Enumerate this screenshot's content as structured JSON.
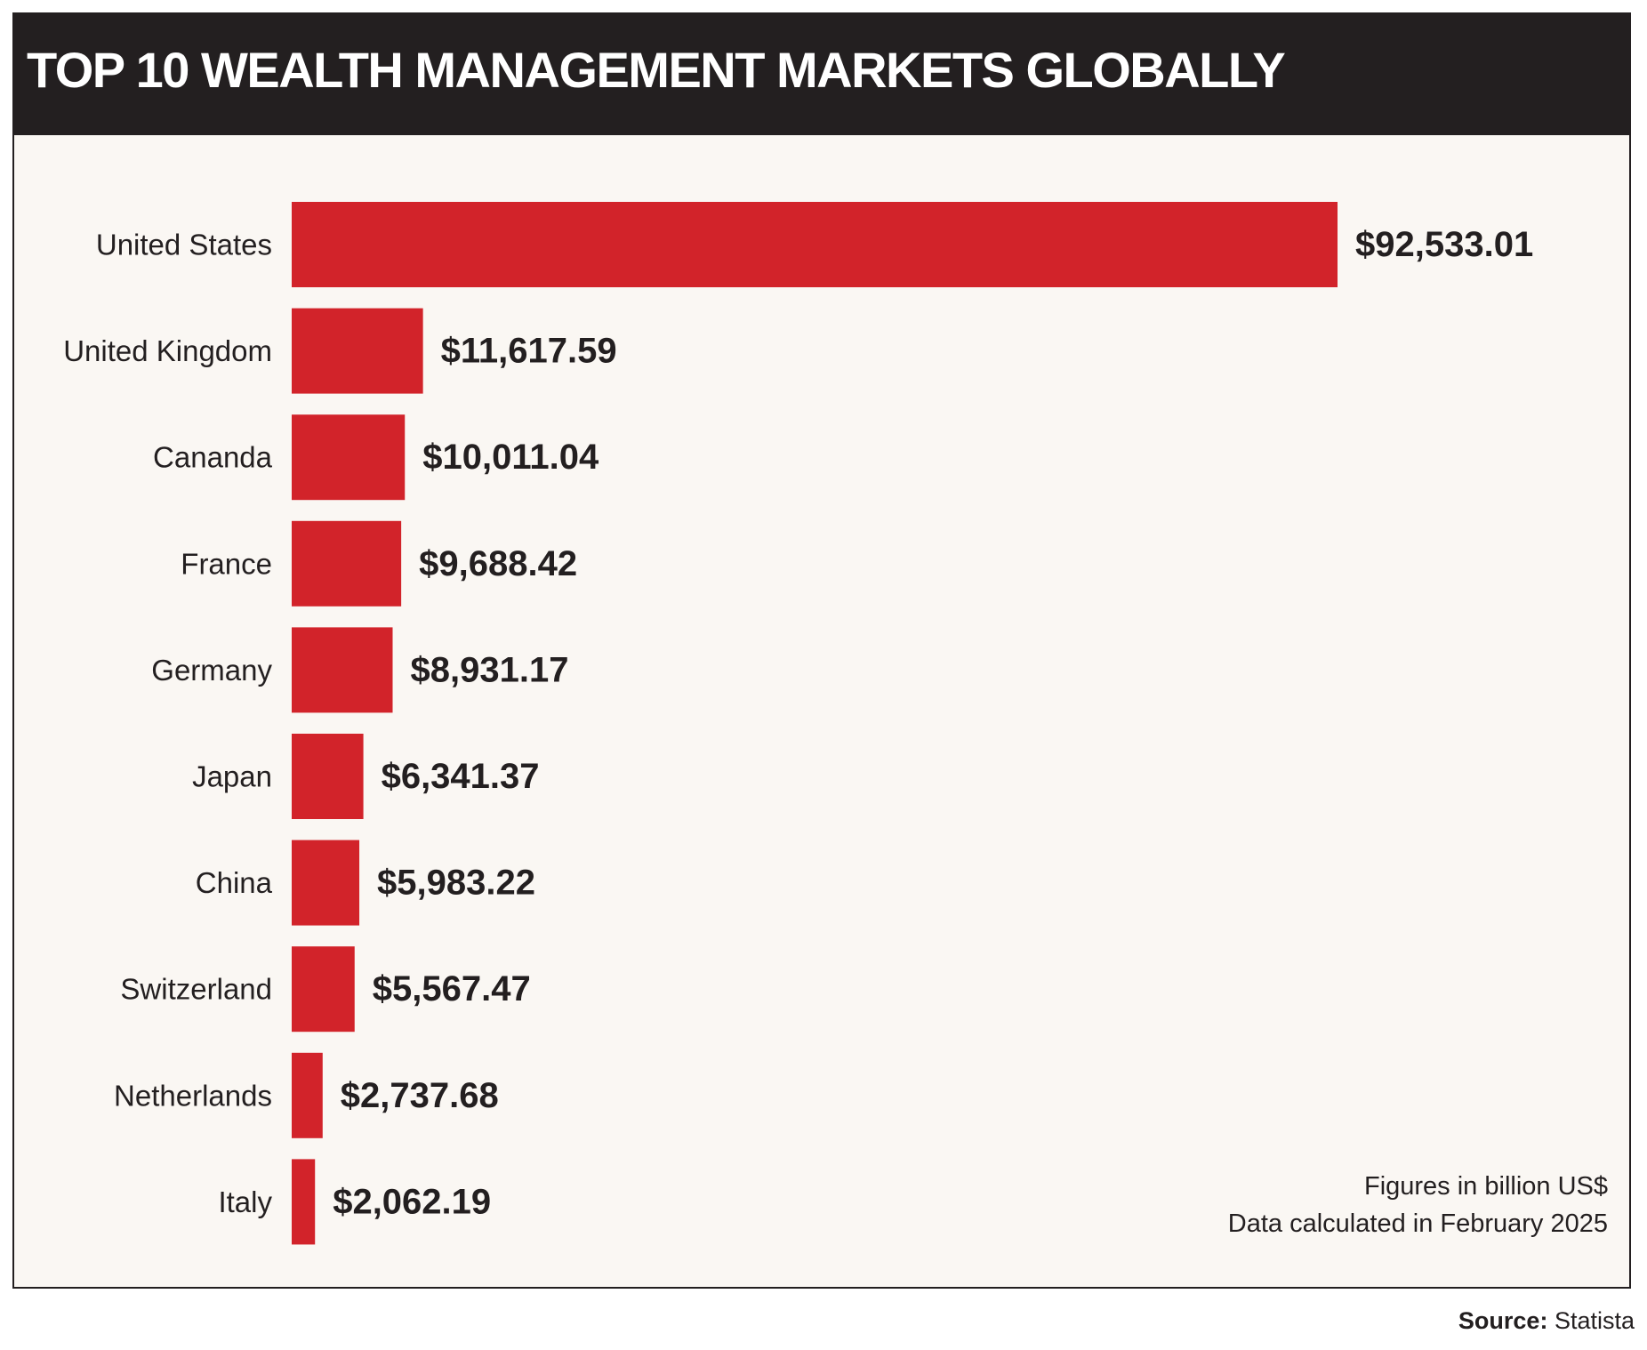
{
  "title": "TOP 10 WEALTH MANAGEMENT MARKETS GLOBALLY",
  "notes": {
    "units": "Figures in billion US$",
    "date": "Data calculated in February 2025"
  },
  "source": {
    "label": "Source:",
    "value": "Statista"
  },
  "colors": {
    "bar": "#d2232a",
    "header_background": "#231f20",
    "panel_background": "#faf7f3"
  },
  "chart_data": {
    "type": "bar",
    "orientation": "horizontal",
    "title": "TOP 10 WEALTH MANAGEMENT MARKETS GLOBALLY",
    "categories": [
      "United States",
      "United Kingdom",
      "Cananda",
      "France",
      "Germany",
      "Japan",
      "China",
      "Switzerland",
      "Netherlands",
      "Italy"
    ],
    "values": [
      92533.01,
      11617.59,
      10011.04,
      9688.42,
      8931.17,
      6341.37,
      5983.22,
      5567.47,
      2737.68,
      2062.19
    ],
    "value_labels": [
      "$92,533.01",
      "$11,617.59",
      "$10,011.04",
      "$9,688.42",
      "$8,931.17",
      "$6,341.37",
      "$5,983.22",
      "$5,567.47",
      "$2,737.68",
      "$2,062.19"
    ],
    "xlabel": "",
    "ylabel": "",
    "grid": false,
    "legend": "none"
  }
}
